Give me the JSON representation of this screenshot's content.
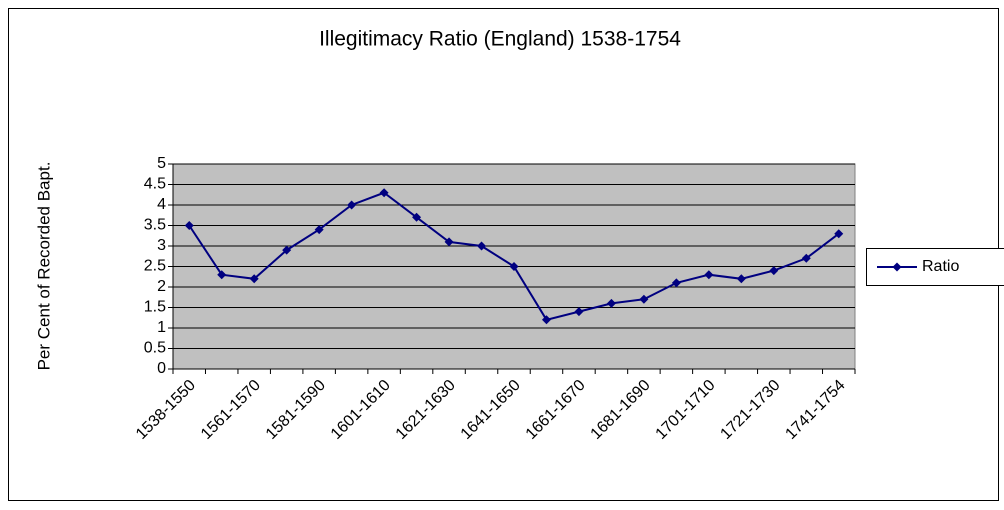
{
  "chart_data": {
    "type": "line",
    "title": "Illegitimacy Ratio (England) 1538-1754",
    "y_label": "Per Cent of Recorded Bapt.",
    "categories": [
      "1538-1550",
      null,
      "1561-1570",
      null,
      "1581-1590",
      null,
      "1601-1610",
      null,
      "1621-1630",
      null,
      "1641-1650",
      null,
      "1661-1670",
      null,
      "1681-1690",
      null,
      "1701-1710",
      null,
      "1721-1730",
      null,
      "1741-1754"
    ],
    "series": [
      {
        "name": "Ratio",
        "color": "#000080",
        "values": [
          3.5,
          2.3,
          2.2,
          2.9,
          3.4,
          4.0,
          4.3,
          3.7,
          3.1,
          3.0,
          2.5,
          1.2,
          1.4,
          1.6,
          1.7,
          2.1,
          2.3,
          2.2,
          2.4,
          2.7,
          3.3
        ]
      }
    ],
    "ylim": [
      0,
      5
    ],
    "yticks": [
      0,
      0.5,
      1,
      1.5,
      2,
      2.5,
      3,
      3.5,
      4,
      4.5,
      5
    ],
    "grid": true,
    "legend": "right",
    "plot_background": "#c0c0c0"
  }
}
